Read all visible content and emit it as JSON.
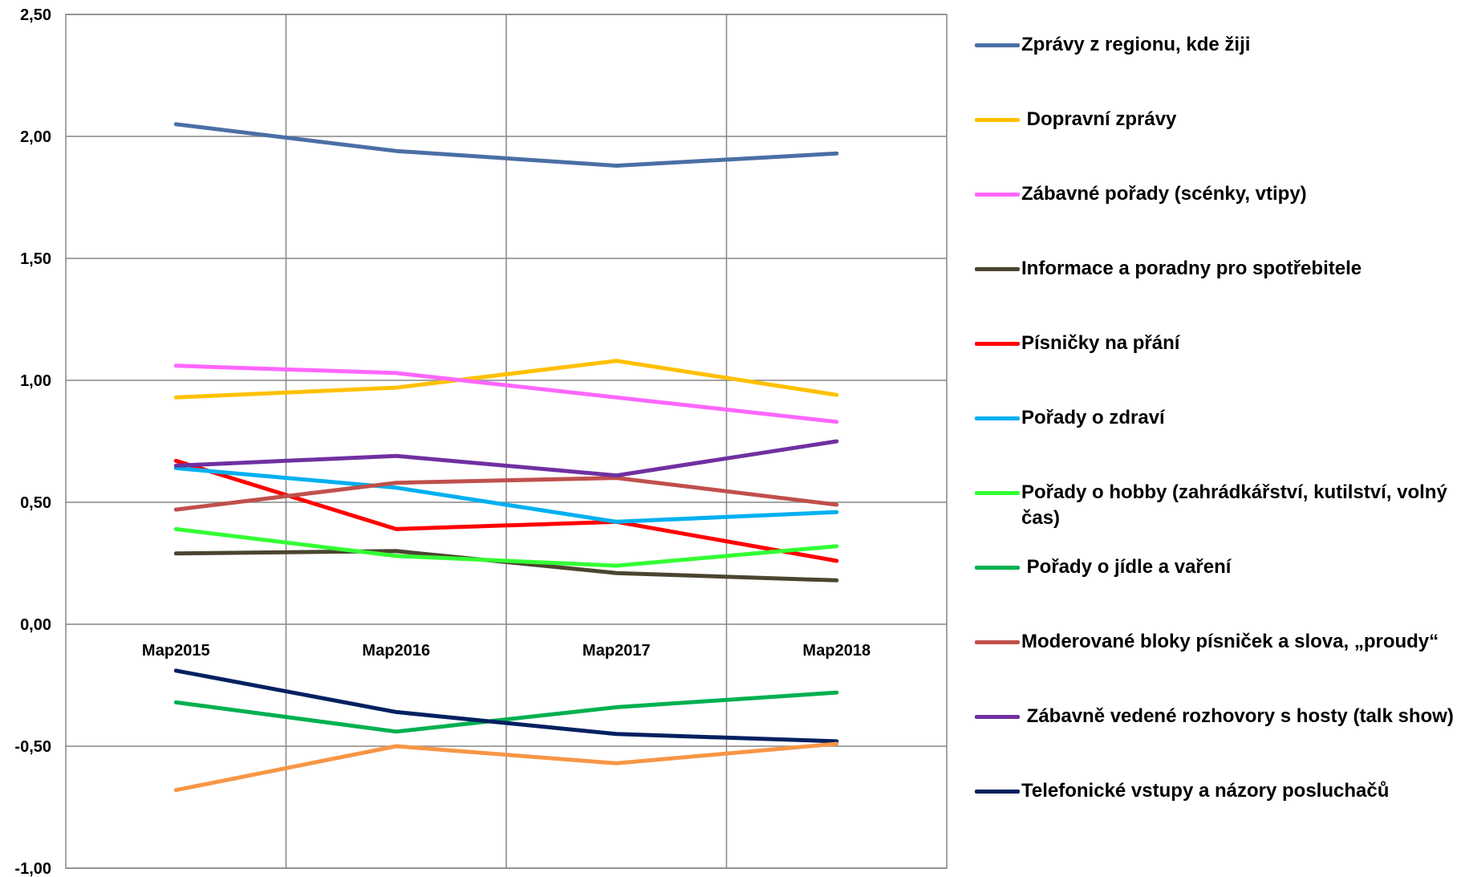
{
  "chart_data": {
    "type": "line",
    "title": "",
    "xlabel": "",
    "ylabel": "",
    "categories": [
      "Мар2015",
      "Мар2016",
      "Мар2017",
      "Мар2018"
    ],
    "ylim": [
      -1.0,
      2.5
    ],
    "yticks": [
      "2,50",
      "2,00",
      "1,50",
      "1,00",
      "0,50",
      "0,00",
      "-0,50",
      "-1,00"
    ],
    "ytick_values": [
      2.5,
      2.0,
      1.5,
      1.0,
      0.5,
      0.0,
      -0.5,
      -1.0
    ],
    "grid": true,
    "legend_position": "right",
    "series": [
      {
        "name": "Zprávy z regionu, kde žiji",
        "color": "#4A6FA5",
        "values": [
          2.05,
          1.94,
          1.88,
          1.93
        ]
      },
      {
        "name": " Dopravní zprávy",
        "color": "#FFC000",
        "values": [
          0.93,
          0.97,
          1.08,
          0.94
        ]
      },
      {
        "name": "Zábavné pořady (scénky, vtipy)",
        "color": "#FF66FF",
        "values": [
          1.06,
          1.03,
          0.93,
          0.83
        ]
      },
      {
        "name": "Informace a poradny pro spotřebitele",
        "color": "#4A4530",
        "values": [
          0.29,
          0.3,
          0.21,
          0.18
        ]
      },
      {
        "name": "Písničky na přání",
        "color": "#FF0000",
        "values": [
          0.67,
          0.39,
          0.42,
          0.26
        ]
      },
      {
        "name": "Pořady o zdraví",
        "color": "#00B0F0",
        "values": [
          0.64,
          0.56,
          0.42,
          0.46
        ]
      },
      {
        "name": "Pořady o hobby (zahrádkářství, kutilství, volný čas)",
        "color": "#33FF33",
        "values": [
          0.39,
          0.28,
          0.24,
          0.32
        ]
      },
      {
        "name": " Pořady o jídle a vaření",
        "color": "#00B050",
        "values": [
          -0.32,
          -0.44,
          -0.34,
          -0.28
        ]
      },
      {
        "name": "Moderované bloky písniček a slova, „proudy“",
        "color": "#C0504D",
        "values": [
          0.47,
          0.58,
          0.6,
          0.49
        ]
      },
      {
        "name": " Zábavně vedené rozhovory s hosty (talk show)",
        "color": "#7030A0",
        "values": [
          0.65,
          0.69,
          0.61,
          0.75
        ]
      },
      {
        "name": "Telefonické vstupy a názory posluchačů",
        "color": "#002060",
        "values": [
          -0.19,
          -0.36,
          -0.45,
          -0.48
        ]
      },
      {
        "name": "",
        "color": "#F79646",
        "values": [
          -0.68,
          -0.5,
          -0.57,
          -0.49
        ]
      }
    ]
  }
}
